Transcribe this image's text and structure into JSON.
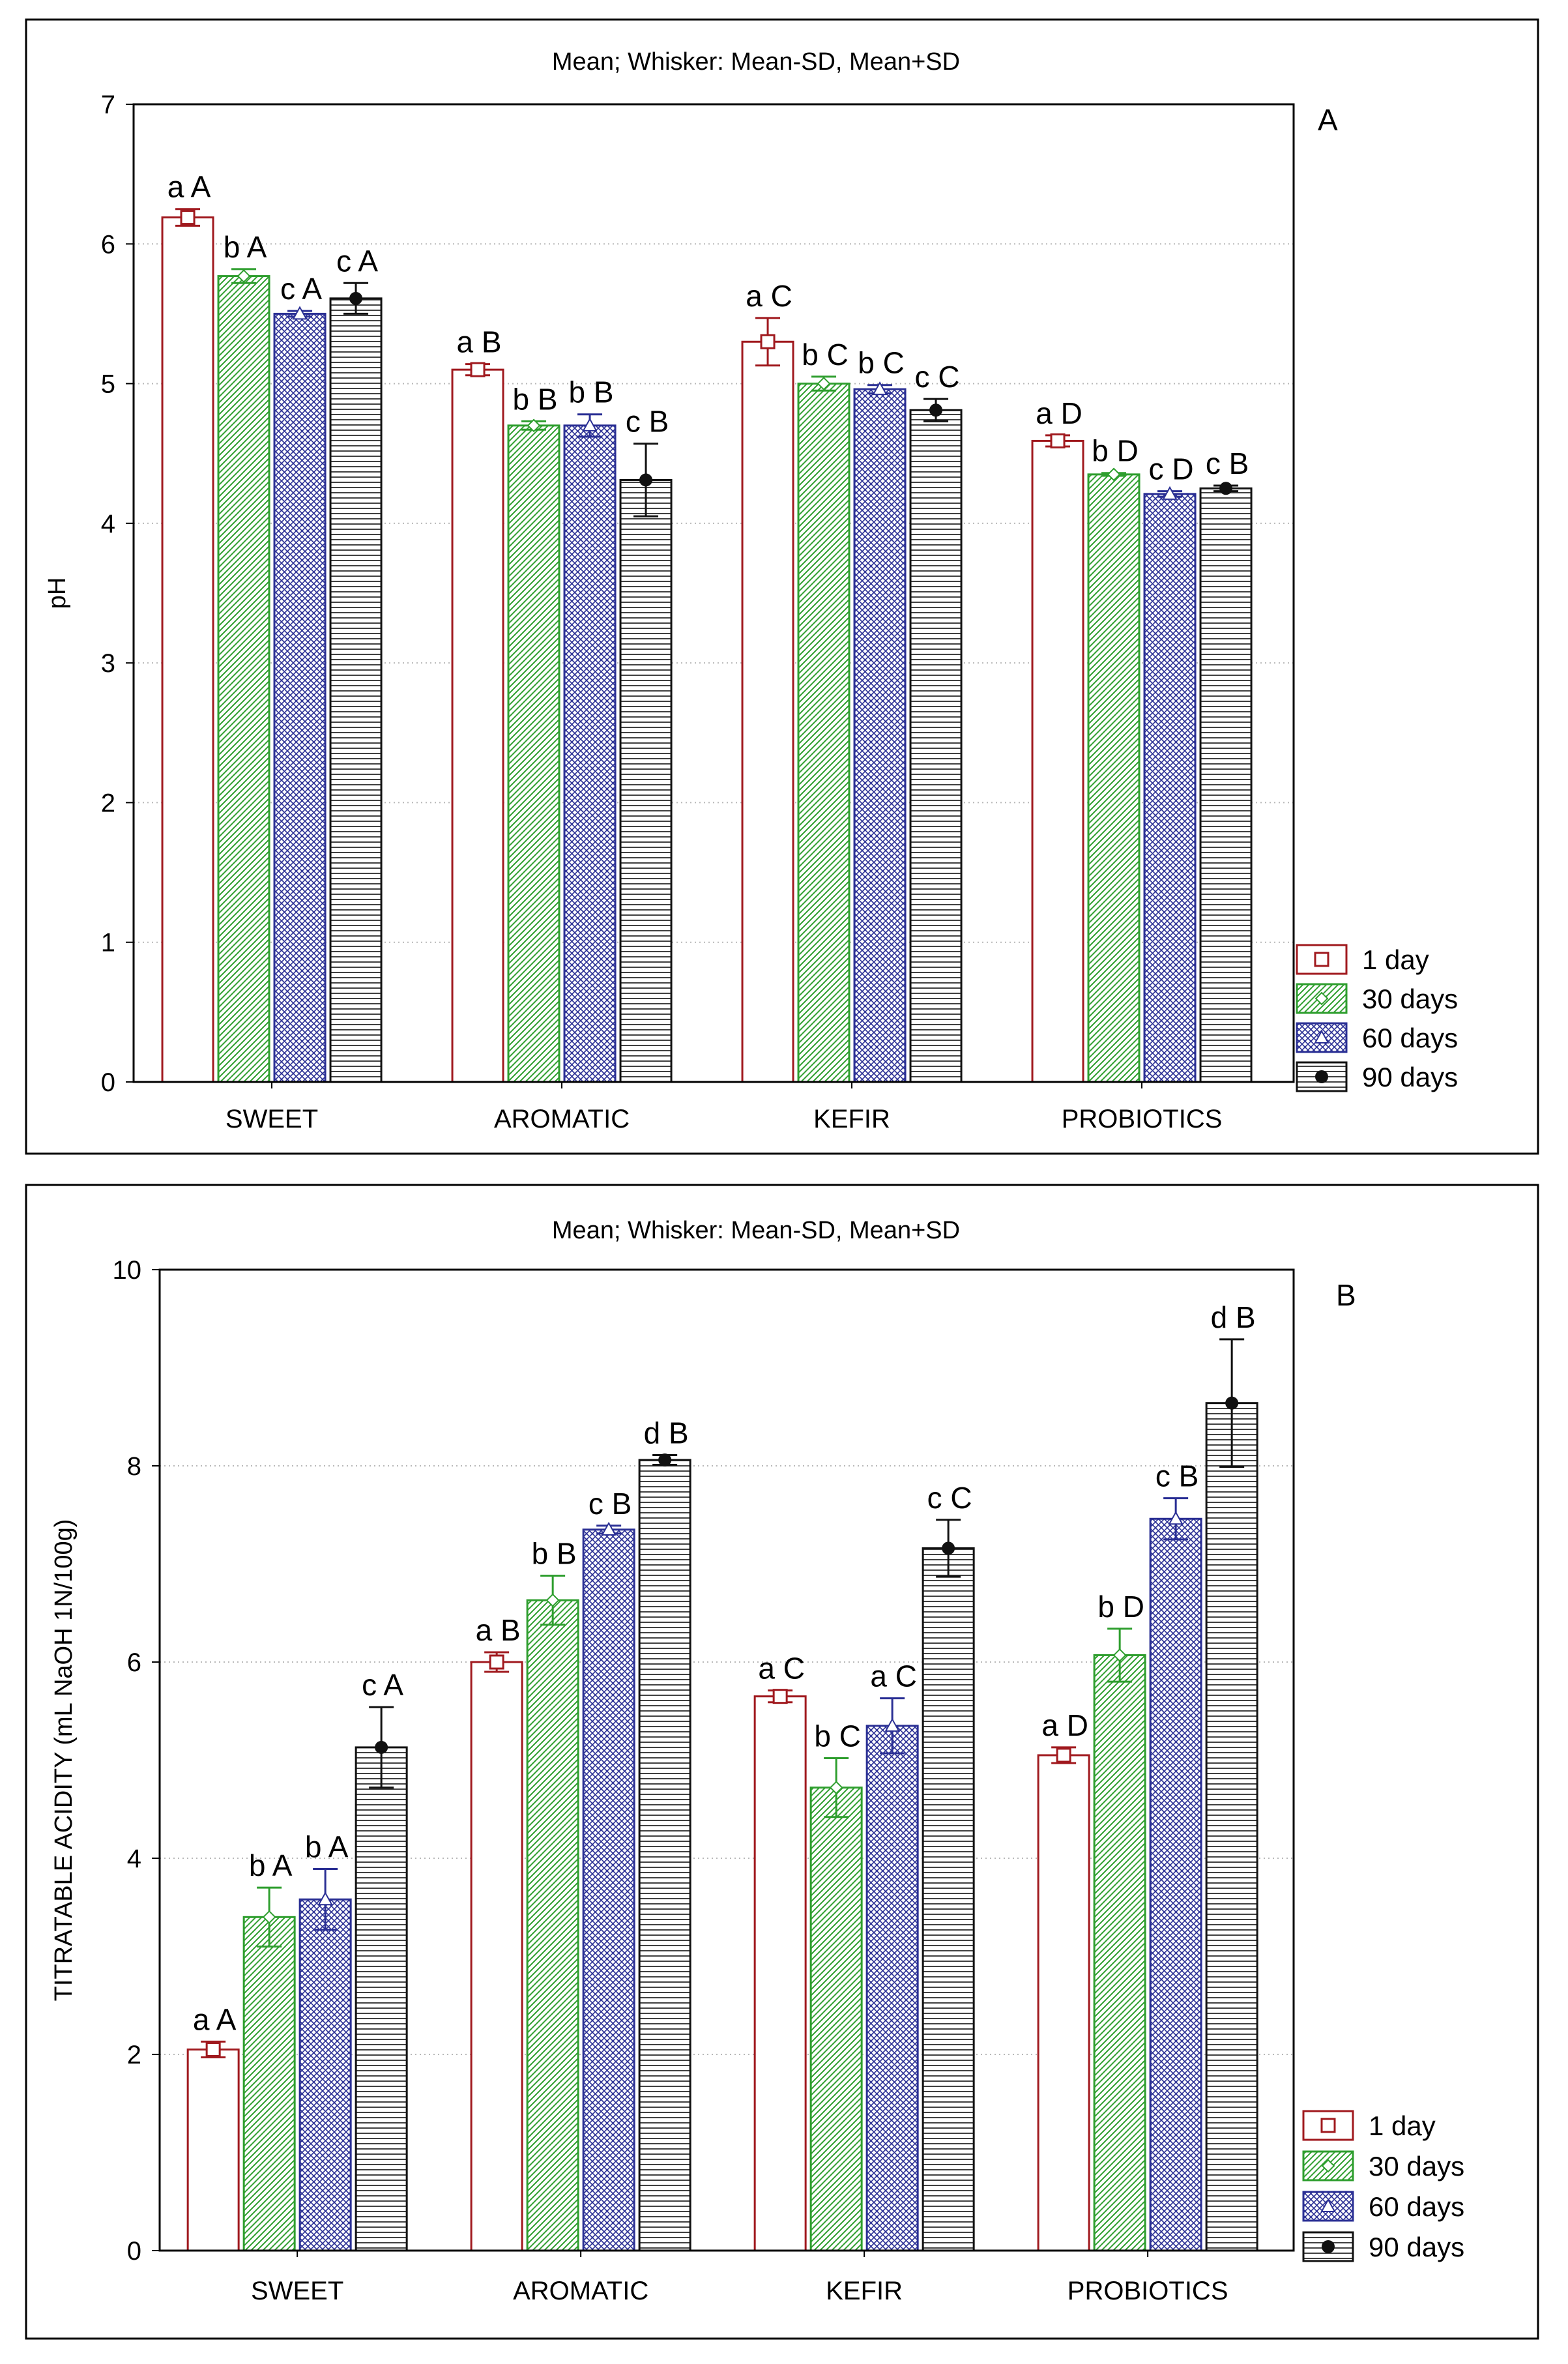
{
  "legend": [
    {
      "label": "1 day",
      "color": "#a0191e",
      "pattern": "none",
      "marker": "square"
    },
    {
      "label": "30 days",
      "color": "#2e9e2e",
      "pattern": "diag",
      "marker": "diamond"
    },
    {
      "label": "60 days",
      "color": "#2a2f94",
      "pattern": "cross",
      "marker": "triangle"
    },
    {
      "label": "90 days",
      "color": "#111111",
      "pattern": "horiz",
      "marker": "dot"
    }
  ],
  "chart_data": [
    {
      "type": "bar",
      "panel_letter": "A",
      "title": "Mean;  Whisker: Mean-SD, Mean+SD",
      "xlabel": "",
      "ylabel": "pH",
      "ylim": [
        0,
        7
      ],
      "yticks": [
        "0",
        "1",
        "2",
        "3",
        "4",
        "5",
        "6",
        "7"
      ],
      "grid": true,
      "legend_position": "bottom-right",
      "categories": [
        "SWEET",
        "AROMATIC",
        "KEFIR",
        "PROBIOTICS"
      ],
      "series": [
        {
          "name": "1 day",
          "values": [
            6.19,
            5.1,
            5.3,
            4.59
          ],
          "sd": [
            0.06,
            0.04,
            0.17,
            0.04
          ],
          "labels": [
            "a A",
            "a B",
            "a C",
            "a D"
          ]
        },
        {
          "name": "30 days",
          "values": [
            5.77,
            4.7,
            5.0,
            4.35
          ],
          "sd": [
            0.05,
            0.03,
            0.05,
            0.01
          ],
          "labels": [
            "b A",
            "b B",
            "b C",
            "b D"
          ]
        },
        {
          "name": "60 days",
          "values": [
            5.5,
            4.7,
            4.96,
            4.21
          ],
          "sd": [
            0.02,
            0.08,
            0.03,
            0.02
          ],
          "labels": [
            "c A",
            "b B",
            "b C",
            "c D"
          ]
        },
        {
          "name": "90 days",
          "values": [
            5.61,
            4.31,
            4.81,
            4.25
          ],
          "sd": [
            0.11,
            0.26,
            0.08,
            0.02
          ],
          "labels": [
            "c A",
            "c B",
            "c C",
            "c B"
          ]
        }
      ]
    },
    {
      "type": "bar",
      "panel_letter": "B",
      "title": "Mean;  Whisker: Mean-SD, Mean+SD",
      "xlabel": "",
      "ylabel": "TITRATABLE ACIDITY  (mL NaOH 1N/100g)",
      "ylim": [
        0,
        10
      ],
      "yticks": [
        "0",
        "2",
        "4",
        "6",
        "8",
        "10"
      ],
      "grid": true,
      "legend_position": "bottom-right",
      "categories": [
        "SWEET",
        "AROMATIC",
        "KEFIR",
        "PROBIOTICS"
      ],
      "series": [
        {
          "name": "1 day",
          "values": [
            2.05,
            6.0,
            5.65,
            5.05
          ],
          "sd": [
            0.08,
            0.1,
            0.06,
            0.08
          ],
          "labels": [
            "a A",
            "a B",
            "a C",
            "a D"
          ]
        },
        {
          "name": "30 days",
          "values": [
            3.4,
            6.63,
            4.72,
            6.07
          ],
          "sd": [
            0.3,
            0.25,
            0.3,
            0.27
          ],
          "labels": [
            "b A",
            "b B",
            "b C",
            "b D"
          ]
        },
        {
          "name": "60 days",
          "values": [
            3.58,
            7.35,
            5.35,
            7.46
          ],
          "sd": [
            0.31,
            0.04,
            0.28,
            0.21
          ],
          "labels": [
            "b A",
            "c B",
            "a C",
            "c B"
          ]
        },
        {
          "name": "90 days",
          "values": [
            5.13,
            8.06,
            7.16,
            8.64
          ],
          "sd": [
            0.41,
            0.05,
            0.29,
            0.65
          ],
          "labels": [
            "c A",
            "d B",
            "c C",
            "d B"
          ]
        }
      ]
    }
  ]
}
